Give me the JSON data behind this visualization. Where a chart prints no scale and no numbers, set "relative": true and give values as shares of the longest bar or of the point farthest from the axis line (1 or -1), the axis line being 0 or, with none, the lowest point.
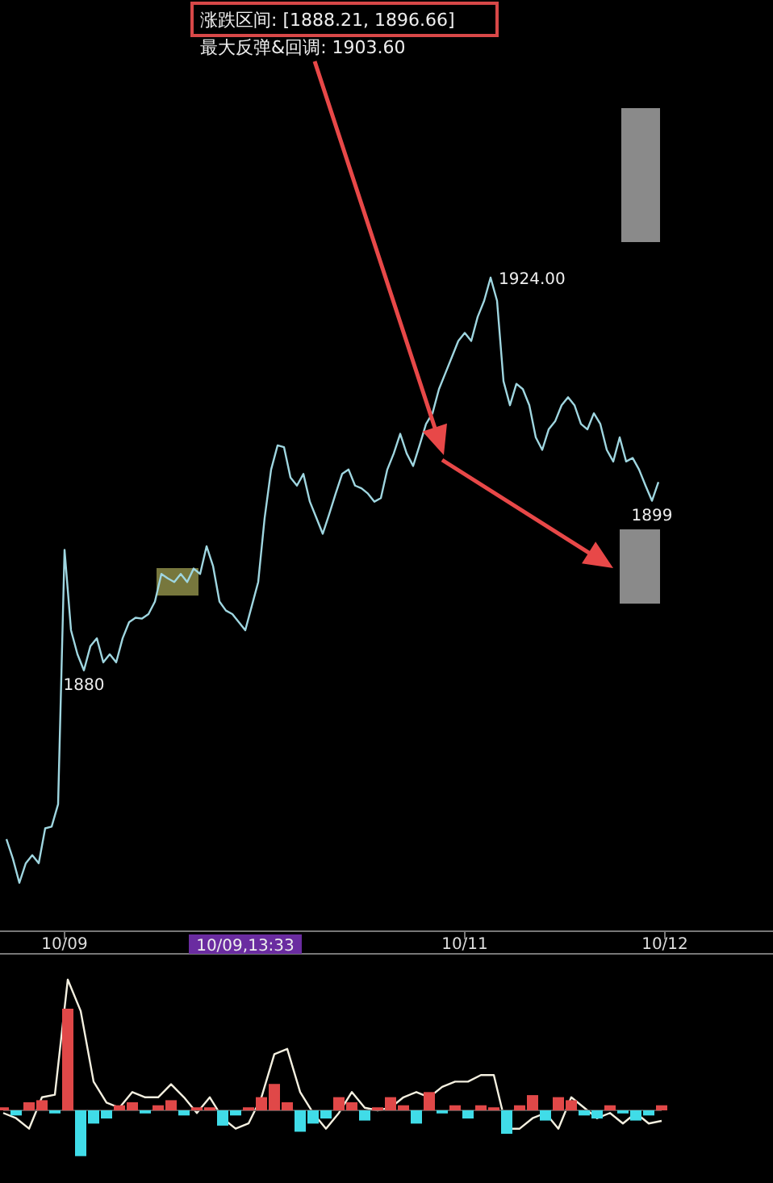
{
  "chart_data": [
    {
      "type": "line",
      "categories": [
        null,
        null,
        null,
        null,
        null,
        null,
        null,
        null,
        null,
        "10/09",
        null,
        null,
        null,
        null,
        null,
        null,
        null,
        null,
        null,
        null,
        null,
        null,
        null,
        null,
        null,
        null,
        null,
        null,
        null,
        null,
        null,
        null,
        null,
        null,
        null,
        null,
        null,
        null,
        null,
        null,
        null,
        null,
        null,
        null,
        null,
        null,
        null,
        null,
        null,
        null,
        null,
        null,
        null,
        null,
        null,
        null,
        null,
        null,
        null,
        null,
        null,
        null,
        null,
        null,
        null,
        null,
        null,
        null,
        null,
        null,
        null,
        "10/11",
        null,
        null,
        null,
        null,
        null,
        null,
        null,
        null,
        null,
        null,
        null,
        null,
        null,
        null,
        null,
        null,
        null,
        null,
        null,
        null,
        null,
        null,
        null,
        null,
        null,
        null,
        null,
        null,
        null,
        null,
        "10/12"
      ],
      "series": [
        {
          "color": "#9fd6e0",
          "values": [
            1861.1,
            1858.9,
            1856.2,
            1858.4,
            1859.3,
            1858.4,
            1862.3,
            1862.5,
            1865.0,
            1893.5,
            1884.5,
            1881.8,
            1880,
            1882.7,
            1883.6,
            1880.9,
            1881.8,
            1880.9,
            1883.6,
            1885.4,
            1885.9,
            1885.8,
            1886.3,
            1887.7,
            1890.8,
            1890.3,
            1889.9,
            1890.8,
            1889.9,
            1891.4,
            1890.8,
            1893.9,
            1891.7,
            1887.7,
            1886.7,
            1886.3,
            1885.4,
            1884.5,
            1887.2,
            1889.9,
            1897.1,
            1902.5,
            1905.2,
            1905.0,
            1901.6,
            1900.7,
            1902.0,
            1898.9,
            1897.1,
            1895.3,
            1897.5,
            1899.8,
            1902.0,
            1902.5,
            1900.7,
            1900.4,
            1899.8,
            1898.9,
            1899.3,
            1902.5,
            1904.3,
            1906.5,
            1904.3,
            1902.9,
            1905.2,
            1907.6,
            1908.8,
            1911.5,
            1913.3,
            1915.1,
            1916.9,
            1917.8,
            1916.9,
            1919.6,
            1921.4,
            1924,
            1921.4,
            1912.4,
            1909.7,
            1912.1,
            1911.5,
            1909.7,
            1906.1,
            1904.7,
            1907.0,
            1907.9,
            1909.7,
            1910.6,
            1909.7,
            1907.6,
            1907.0,
            1908.8,
            1907.6,
            1904.7,
            1903.4,
            1906.1,
            1903.4,
            1903.8,
            1902.5,
            1900.7,
            1899,
            1901.1,
            null
          ],
          "value_labels": [
            null,
            null,
            null,
            null,
            null,
            null,
            null,
            null,
            null,
            null,
            null,
            null,
            "1880",
            null,
            null,
            null,
            null,
            null,
            null,
            null,
            null,
            null,
            null,
            null,
            null,
            null,
            null,
            null,
            null,
            null,
            null,
            null,
            null,
            null,
            null,
            null,
            null,
            null,
            null,
            null,
            null,
            null,
            null,
            null,
            null,
            null,
            null,
            null,
            null,
            null,
            null,
            null,
            null,
            null,
            null,
            null,
            null,
            null,
            null,
            null,
            null,
            null,
            null,
            null,
            null,
            null,
            null,
            null,
            null,
            null,
            null,
            null,
            null,
            null,
            null,
            "1924.00",
            null,
            null,
            null,
            null,
            null,
            null,
            null,
            null,
            null,
            null,
            null,
            null,
            null,
            null,
            null,
            null,
            null,
            null,
            null,
            null,
            null,
            null,
            null,
            null,
            "1899",
            null,
            null
          ]
        }
      ],
      "annotations": [
        "涨跌区间: [1888.21, 1896.66]",
        "最大反弹&回调: 1903.60",
        "10/09,13:33"
      ]
    },
    {
      "type": "line",
      "relative": true,
      "categories": [
        null,
        null,
        null,
        null,
        null,
        null,
        null,
        null,
        null,
        null,
        null,
        null,
        null,
        null,
        null,
        null,
        null,
        null,
        null,
        null,
        null,
        null,
        null,
        null,
        null,
        null,
        null,
        null,
        null,
        null,
        null,
        null,
        null,
        null,
        null,
        null,
        null,
        null,
        null,
        null,
        null,
        null,
        null,
        null,
        null,
        null,
        null,
        null,
        null,
        null,
        null,
        null
      ],
      "series": [
        {
          "color": "#f4f0e0",
          "values": [
            -0.02,
            -0.06,
            -0.14,
            0.1,
            0.12,
            1,
            0.76,
            0.22,
            0.06,
            0.02,
            0.14,
            0.1,
            0.1,
            0.2,
            0.1,
            -0.02,
            0.1,
            -0.06,
            -0.14,
            -0.1,
            0.1,
            0.43,
            0.47,
            0.14,
            -0.02,
            -0.14,
            -0.02,
            0.14,
            0.02,
            0,
            0.02,
            0.1,
            0.14,
            0.1,
            0.18,
            0.22,
            0.22,
            0.27,
            0.27,
            -0.14,
            -0.14,
            -0.06,
            -0.02,
            -0.14,
            0.1,
            0.02,
            -0.06,
            -0.02,
            -0.1,
            -0.02,
            -0.1,
            -0.08
          ]
        }
      ]
    },
    {
      "type": "bar",
      "relative": true,
      "categories": [
        null,
        null,
        null,
        null,
        null,
        null,
        null,
        null,
        null,
        null,
        null,
        null,
        null,
        null,
        null,
        null,
        null,
        null,
        null,
        null,
        null,
        null,
        null,
        null,
        null,
        null,
        null,
        null,
        null,
        null,
        null,
        null,
        null,
        null,
        null,
        null,
        null,
        null,
        null,
        null,
        null,
        null,
        null,
        null,
        null,
        null,
        null,
        null,
        null,
        null,
        null,
        null
      ],
      "colors": [
        "#e04848",
        "#40dce8",
        "#e04848",
        "#e04848",
        "#40dce8",
        "#e04848",
        "#40dce8",
        "#40dce8",
        "#40dce8",
        "#e04848",
        "#e04848",
        "#40dce8",
        "#e04848",
        "#e04848",
        "#40dce8",
        "#e04848",
        "#e04848",
        "#40dce8",
        "#40dce8",
        "#e04848",
        "#e04848",
        "#e04848",
        "#e04848",
        "#40dce8",
        "#40dce8",
        "#40dce8",
        "#e04848",
        "#e04848",
        "#40dce8",
        "#e04848",
        "#e04848",
        "#e04848",
        "#40dce8",
        "#e04848",
        "#40dce8",
        "#e04848",
        "#40dce8",
        "#e04848",
        "#e04848",
        "#40dce8",
        "#e04848",
        "#e04848",
        "#40dce8",
        "#e04848",
        "#e04848",
        "#40dce8",
        "#40dce8",
        "#e04848",
        "#40dce8",
        "#40dce8",
        "#40dce8",
        "#e04848"
      ],
      "values": [
        0.03,
        -0.05,
        0.08,
        0.1,
        -0.03,
        1,
        -0.45,
        -0.13,
        -0.08,
        0.05,
        0.08,
        -0.03,
        0.05,
        0.1,
        -0.05,
        0.03,
        0.03,
        -0.15,
        -0.05,
        0.03,
        0.13,
        0.26,
        0.08,
        -0.21,
        -0.13,
        -0.08,
        0.13,
        0.08,
        -0.1,
        0.03,
        0.13,
        0.05,
        -0.13,
        0.18,
        -0.03,
        0.05,
        -0.08,
        0.05,
        0.03,
        -0.23,
        0.05,
        0.15,
        -0.1,
        0.13,
        0.1,
        -0.05,
        -0.08,
        0.05,
        -0.03,
        -0.1,
        -0.05,
        0.05
      ]
    }
  ]
}
